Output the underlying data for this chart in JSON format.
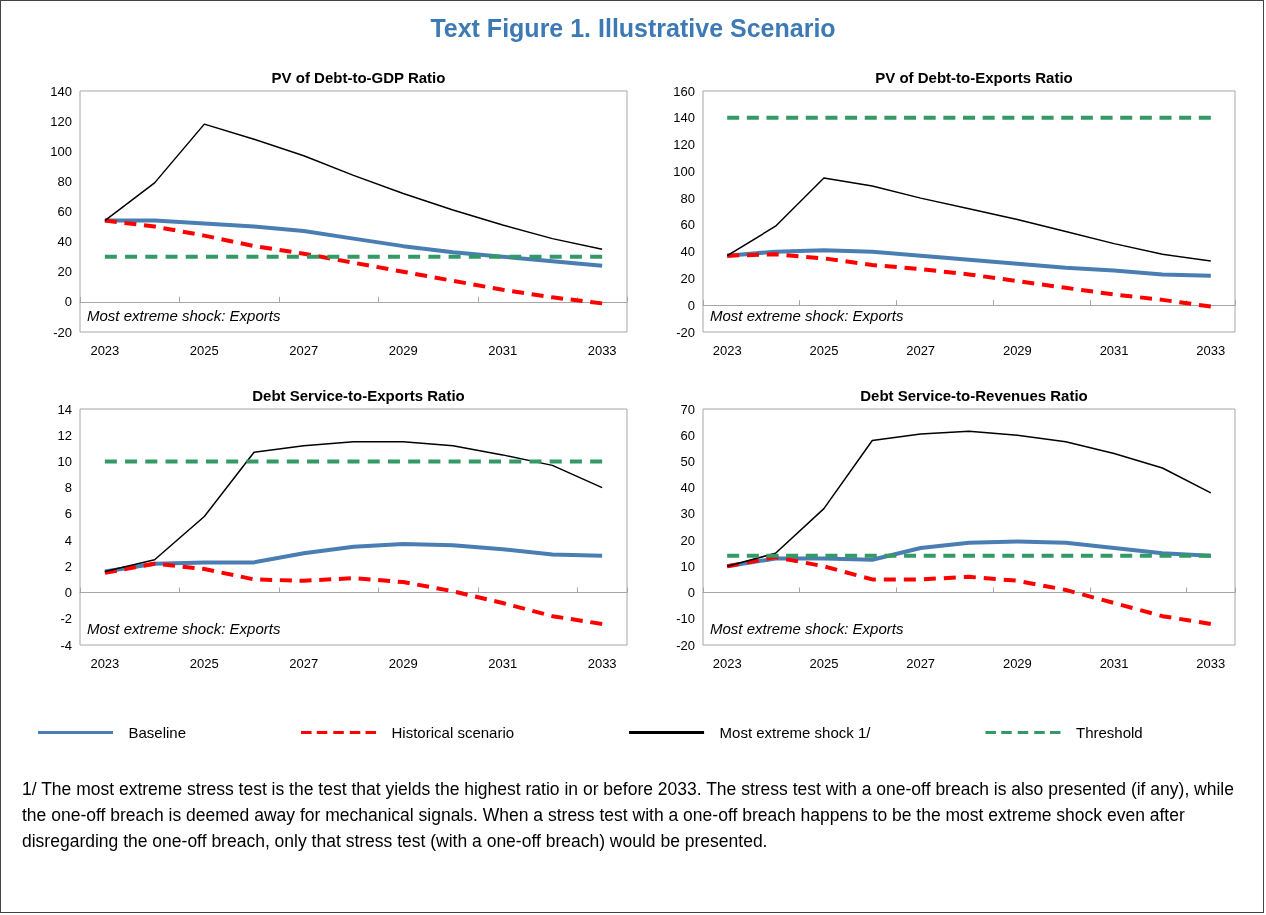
{
  "chart_data": [
    {
      "type": "other",
      "title": "Text Figure 1.  Illustrative Scenario",
      "annotations": [
        "1/ The most extreme stress test is the test that yields the highest ratio in or before 2033. The stress test with a one-off breach is also presented (if any), while the one-off breach is deemed away for mechanical signals. When a stress test with a one-off breach happens to be the most extreme shock even after disregarding the one-off breach, only that stress test (with a one-off breach) would be presented."
      ]
    },
    {
      "type": "line",
      "title": "PV of Debt-to-GDP Ratio",
      "categories": [
        "2023",
        null,
        "2025",
        null,
        "2027",
        null,
        "2029",
        null,
        "2031",
        null,
        "2033"
      ],
      "ylim": [
        -20,
        140
      ],
      "yticks": [
        -20,
        0,
        20,
        40,
        60,
        80,
        100,
        120,
        140
      ],
      "legend": "bottom",
      "annotations": [
        "Most extreme shock: Exports"
      ],
      "series": [
        {
          "name": "Baseline",
          "color": "#4a7eb3",
          "line_style": "solid",
          "values": [
            54,
            54,
            52,
            50,
            47,
            42,
            37,
            33,
            30,
            27,
            24
          ]
        },
        {
          "name": "Historical scenario",
          "color": "#ff0000",
          "line_style": "dashed",
          "values": [
            54,
            50,
            44,
            37,
            32,
            26,
            20,
            14,
            8,
            3,
            -1
          ]
        },
        {
          "name": "Most extreme shock 1/",
          "color": "#000000",
          "line_style": "solid",
          "values": [
            54,
            79,
            118,
            108,
            97,
            84,
            72,
            61,
            51,
            42,
            35
          ]
        },
        {
          "name": "Threshold",
          "color": "#339966",
          "line_style": "dashed",
          "values": [
            30,
            30,
            30,
            30,
            30,
            30,
            30,
            30,
            30,
            30,
            30
          ]
        }
      ]
    },
    {
      "type": "line",
      "title": "PV of Debt-to-Exports Ratio",
      "categories": [
        "2023",
        null,
        "2025",
        null,
        "2027",
        null,
        "2029",
        null,
        "2031",
        null,
        "2033"
      ],
      "ylim": [
        -20,
        160
      ],
      "yticks": [
        -20,
        0,
        20,
        40,
        60,
        80,
        100,
        120,
        140,
        160
      ],
      "annotations": [
        "Most extreme shock: Exports"
      ],
      "series": [
        {
          "color": "#4a7eb3",
          "line_style": "solid",
          "values": [
            37,
            40,
            41,
            40,
            37,
            34,
            31,
            28,
            26,
            23,
            22
          ]
        },
        {
          "color": "#ff0000",
          "line_style": "dashed",
          "values": [
            37,
            38,
            35,
            30,
            27,
            23,
            18,
            13,
            8,
            4,
            -1
          ]
        },
        {
          "color": "#000000",
          "line_style": "solid",
          "values": [
            37,
            59,
            95,
            89,
            80,
            72,
            64,
            55,
            46,
            38,
            33
          ]
        },
        {
          "color": "#339966",
          "line_style": "dashed",
          "values": [
            140,
            140,
            140,
            140,
            140,
            140,
            140,
            140,
            140,
            140,
            140
          ]
        }
      ]
    },
    {
      "type": "line",
      "title": "Debt Service-to-Exports Ratio",
      "categories": [
        "2023",
        null,
        "2025",
        null,
        "2027",
        null,
        "2029",
        null,
        "2031",
        null,
        "2033"
      ],
      "ylim": [
        -4,
        14
      ],
      "yticks": [
        -4,
        -2,
        0,
        2,
        4,
        6,
        8,
        10,
        12,
        14
      ],
      "annotations": [
        "Most extreme shock: Exports"
      ],
      "series": [
        {
          "color": "#4a7eb3",
          "line_style": "solid",
          "values": [
            1.6,
            2.2,
            2.3,
            2.3,
            3.0,
            3.5,
            3.7,
            3.6,
            3.3,
            2.9,
            2.8
          ]
        },
        {
          "color": "#ff0000",
          "line_style": "dashed",
          "values": [
            1.5,
            2.2,
            1.8,
            1.0,
            0.9,
            1.1,
            0.8,
            0.1,
            -0.8,
            -1.8,
            -2.4
          ]
        },
        {
          "color": "#000000",
          "line_style": "solid",
          "values": [
            1.6,
            2.5,
            5.8,
            10.7,
            11.2,
            11.5,
            11.5,
            11.2,
            10.5,
            9.7,
            8.0
          ]
        },
        {
          "color": "#339966",
          "line_style": "dashed",
          "values": [
            10,
            10,
            10,
            10,
            10,
            10,
            10,
            10,
            10,
            10,
            10
          ]
        }
      ]
    },
    {
      "type": "line",
      "title": "Debt Service-to-Revenues Ratio",
      "categories": [
        "2023",
        null,
        "2025",
        null,
        "2027",
        null,
        "2029",
        null,
        "2031",
        null,
        "2033"
      ],
      "ylim": [
        -20,
        70
      ],
      "yticks": [
        -20,
        -10,
        0,
        10,
        20,
        30,
        40,
        50,
        60,
        70
      ],
      "annotations": [
        "Most extreme shock: Exports"
      ],
      "series": [
        {
          "color": "#4a7eb3",
          "line_style": "solid",
          "values": [
            10,
            13,
            13,
            12.5,
            17,
            19,
            19.5,
            19,
            17,
            15,
            14
          ]
        },
        {
          "color": "#ff0000",
          "line_style": "dashed",
          "values": [
            10,
            13.5,
            10,
            5,
            5,
            6,
            4.5,
            1,
            -4,
            -9,
            -12
          ]
        },
        {
          "color": "#000000",
          "line_style": "solid",
          "values": [
            10,
            15,
            32,
            58,
            60.5,
            61.5,
            60,
            57.5,
            53,
            47.5,
            38
          ]
        },
        {
          "color": "#339966",
          "line_style": "dashed",
          "values": [
            14,
            14,
            14,
            14,
            14,
            14,
            14,
            14,
            14,
            14,
            14
          ]
        }
      ]
    }
  ]
}
